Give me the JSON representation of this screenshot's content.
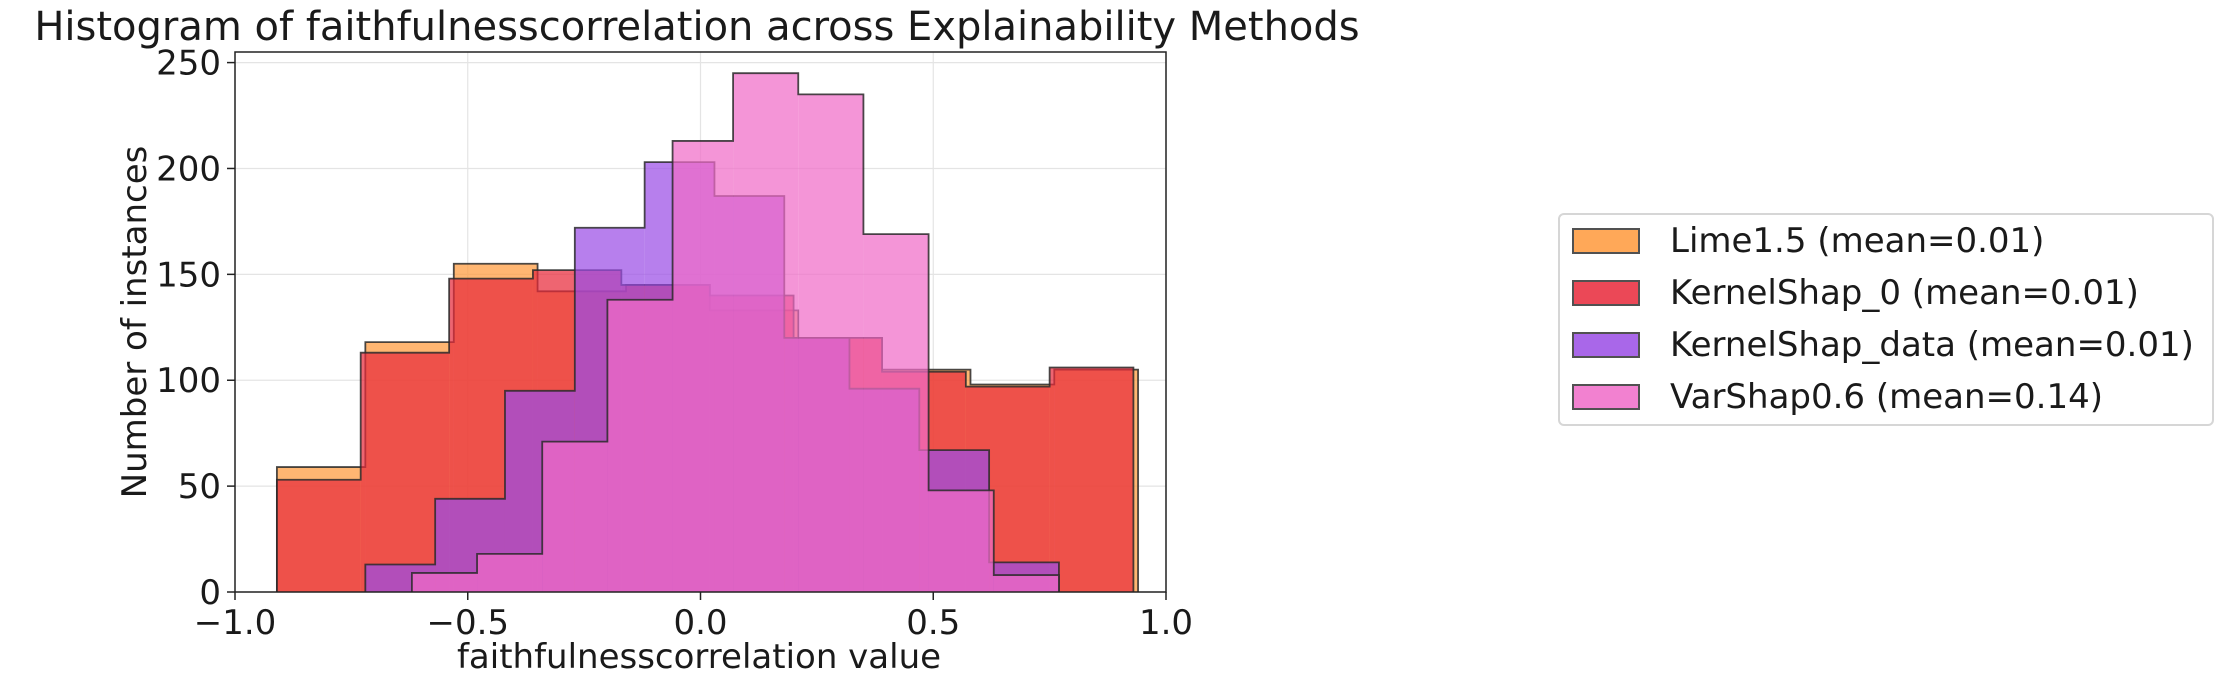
{
  "chart_data": {
    "type": "histogram",
    "title": "Histogram of faithfulnesscorrelation across Explainability Methods",
    "xlabel": "faithfulnesscorrelation value",
    "ylabel": "Number of instances",
    "xlim": [
      -1.0,
      1.0
    ],
    "ylim": [
      0,
      255
    ],
    "xticks": [
      -1.0,
      -0.5,
      0.0,
      0.5,
      1.0
    ],
    "xtick_labels": [
      "−1.0",
      "−0.5",
      "0.0",
      "0.5",
      "1.0"
    ],
    "yticks": [
      0,
      50,
      100,
      150,
      200,
      250
    ],
    "ytick_labels": [
      "0",
      "50",
      "100",
      "150",
      "200",
      "250"
    ],
    "grid": true,
    "legend_position": "right, outside plot",
    "series": [
      {
        "name": "Lime1.5 (mean=0.01)",
        "color": "#ff9a3c",
        "bin_edges": [
          -0.91,
          -0.72,
          -0.53,
          -0.35,
          -0.16,
          0.02,
          0.21,
          0.39,
          0.58,
          0.76,
          0.94
        ],
        "counts": [
          59,
          118,
          155,
          142,
          145,
          133,
          120,
          105,
          98,
          105
        ]
      },
      {
        "name": "KernelShap_0 (mean=0.01)",
        "color": "#e8293a",
        "bin_edges": [
          -0.91,
          -0.73,
          -0.54,
          -0.36,
          -0.17,
          0.02,
          0.2,
          0.39,
          0.57,
          0.75,
          0.93
        ],
        "counts": [
          53,
          113,
          148,
          152,
          145,
          140,
          120,
          104,
          97,
          106
        ]
      },
      {
        "name": "KernelShap_data (mean=0.01)",
        "color": "#9b4de6",
        "bin_edges": [
          -0.72,
          -0.57,
          -0.42,
          -0.27,
          -0.12,
          0.03,
          0.18,
          0.32,
          0.47,
          0.62,
          0.77
        ],
        "counts": [
          13,
          44,
          95,
          172,
          203,
          187,
          120,
          96,
          67,
          14
        ]
      },
      {
        "name": "VarShap0.6 (mean=0.14)",
        "color": "#f06cc8",
        "bin_edges": [
          -0.62,
          -0.48,
          -0.34,
          -0.2,
          -0.06,
          0.07,
          0.21,
          0.35,
          0.49,
          0.63,
          0.77
        ],
        "counts": [
          9,
          18,
          71,
          138,
          213,
          245,
          235,
          169,
          48,
          8
        ]
      }
    ]
  }
}
